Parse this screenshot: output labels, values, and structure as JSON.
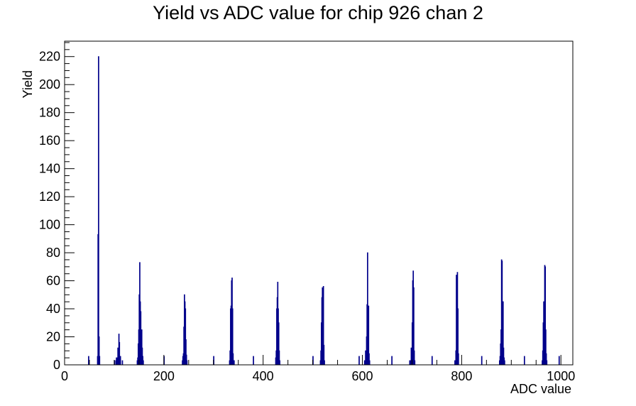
{
  "chart_data": {
    "type": "bar",
    "title": "Yield vs ADC value for chip 926 chan 2",
    "xlabel": "ADC value",
    "ylabel": "Yield",
    "xlim": [
      0,
      1024
    ],
    "ylim": [
      0,
      231
    ],
    "x_ticks": [
      0,
      200,
      400,
      600,
      800,
      1000
    ],
    "y_ticks": [
      0,
      20,
      40,
      60,
      80,
      100,
      120,
      140,
      160,
      180,
      200,
      220
    ],
    "bin_width": 1,
    "line_color": "#00008b",
    "grid": false,
    "legend": "none",
    "series": [
      {
        "points": [
          [
            48,
            6
          ],
          [
            66,
            6
          ],
          [
            67,
            93
          ],
          [
            68,
            220
          ],
          [
            69,
            20
          ],
          [
            70,
            6
          ],
          [
            100,
            3
          ],
          [
            103,
            3
          ],
          [
            104,
            5
          ],
          [
            106,
            5
          ],
          [
            107,
            12
          ],
          [
            108,
            9
          ],
          [
            109,
            22
          ],
          [
            110,
            16
          ],
          [
            112,
            6
          ],
          [
            116,
            3
          ],
          [
            146,
            3
          ],
          [
            147,
            5
          ],
          [
            148,
            15
          ],
          [
            149,
            25
          ],
          [
            150,
            50
          ],
          [
            151,
            73
          ],
          [
            152,
            45
          ],
          [
            153,
            38
          ],
          [
            154,
            20
          ],
          [
            155,
            25
          ],
          [
            156,
            12
          ],
          [
            157,
            6
          ],
          [
            158,
            3
          ],
          [
            200,
            6
          ],
          [
            237,
            3
          ],
          [
            238,
            6
          ],
          [
            239,
            8
          ],
          [
            240,
            27
          ],
          [
            241,
            50
          ],
          [
            242,
            45
          ],
          [
            243,
            40
          ],
          [
            244,
            18
          ],
          [
            245,
            7
          ],
          [
            246,
            3
          ],
          [
            300,
            6
          ],
          [
            332,
            3
          ],
          [
            333,
            10
          ],
          [
            334,
            40
          ],
          [
            335,
            42
          ],
          [
            336,
            60
          ],
          [
            337,
            62
          ],
          [
            338,
            40
          ],
          [
            339,
            8
          ],
          [
            340,
            3
          ],
          [
            341,
            3
          ],
          [
            380,
            6
          ],
          [
            425,
            5
          ],
          [
            426,
            10
          ],
          [
            427,
            40
          ],
          [
            428,
            48
          ],
          [
            429,
            59
          ],
          [
            430,
            40
          ],
          [
            431,
            30
          ],
          [
            432,
            10
          ],
          [
            433,
            3
          ],
          [
            500,
            6
          ],
          [
            515,
            3
          ],
          [
            516,
            10
          ],
          [
            517,
            30
          ],
          [
            518,
            48
          ],
          [
            519,
            55
          ],
          [
            520,
            54
          ],
          [
            521,
            56
          ],
          [
            522,
            14
          ],
          [
            523,
            3
          ],
          [
            593,
            6
          ],
          [
            604,
            3
          ],
          [
            606,
            10
          ],
          [
            608,
            20
          ],
          [
            609,
            43
          ],
          [
            610,
            80
          ],
          [
            611,
            42
          ],
          [
            612,
            42
          ],
          [
            613,
            8
          ],
          [
            614,
            3
          ],
          [
            659,
            6
          ],
          [
            695,
            3
          ],
          [
            697,
            3
          ],
          [
            698,
            12
          ],
          [
            700,
            30
          ],
          [
            701,
            60
          ],
          [
            702,
            67
          ],
          [
            703,
            55
          ],
          [
            704,
            10
          ],
          [
            705,
            3
          ],
          [
            740,
            6
          ],
          [
            786,
            3
          ],
          [
            788,
            10
          ],
          [
            789,
            64
          ],
          [
            790,
            62
          ],
          [
            791,
            66
          ],
          [
            792,
            40
          ],
          [
            793,
            8
          ],
          [
            840,
            6
          ],
          [
            876,
            3
          ],
          [
            877,
            6
          ],
          [
            878,
            15
          ],
          [
            879,
            25
          ],
          [
            880,
            75
          ],
          [
            881,
            74
          ],
          [
            882,
            45
          ],
          [
            883,
            45
          ],
          [
            884,
            12
          ],
          [
            885,
            5
          ],
          [
            886,
            3
          ],
          [
            926,
            6
          ],
          [
            962,
            3
          ],
          [
            963,
            10
          ],
          [
            964,
            30
          ],
          [
            965,
            45
          ],
          [
            966,
            38
          ],
          [
            967,
            71
          ],
          [
            968,
            70
          ],
          [
            969,
            25
          ],
          [
            970,
            8
          ],
          [
            971,
            3
          ],
          [
            996,
            6
          ]
        ]
      }
    ]
  }
}
